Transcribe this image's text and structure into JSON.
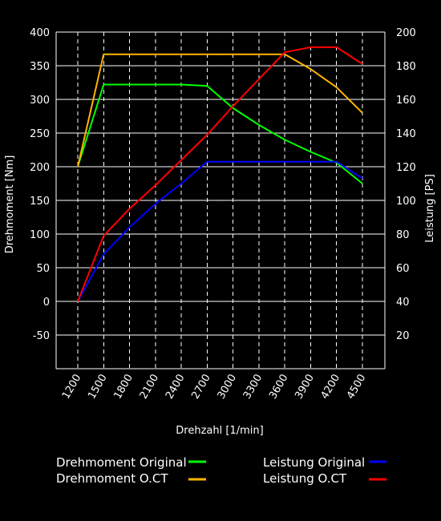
{
  "chart_data": {
    "type": "line",
    "xlabel": "Drehzahl [1/min]",
    "ylabel_left": "Drehmoment [Nm]",
    "ylabel_right": "Leistung [PS]",
    "x": [
      1200,
      1500,
      1800,
      2100,
      2400,
      2700,
      3000,
      3300,
      3600,
      3900,
      4200,
      4500
    ],
    "x_ticks": [
      "1200",
      "1500",
      "1800",
      "2100",
      "2400",
      "2700",
      "3000",
      "3300",
      "3600",
      "3900",
      "4200",
      "4500"
    ],
    "x_grid": "dashed",
    "y_left_range": [
      -100,
      400
    ],
    "y_left_ticks": [
      -50,
      0,
      50,
      100,
      150,
      200,
      250,
      300,
      350,
      400
    ],
    "y_right_range": [
      0,
      200
    ],
    "y_right_ticks": [
      20,
      40,
      60,
      80,
      100,
      120,
      140,
      160,
      180,
      200
    ],
    "grid": true,
    "legend_position": "bottom",
    "series": [
      {
        "name": "Drehmoment Original",
        "axis": "left",
        "color": "#00ff00",
        "points": [
          [
            1200,
            200
          ],
          [
            1500,
            322
          ],
          [
            2400,
            322
          ],
          [
            2700,
            320
          ],
          [
            3000,
            287
          ],
          [
            3300,
            262
          ],
          [
            3600,
            240
          ],
          [
            3900,
            222
          ],
          [
            4200,
            206
          ],
          [
            4500,
            175
          ]
        ]
      },
      {
        "name": "Drehmoment O.CT",
        "axis": "left",
        "color": "#ffb400",
        "points": [
          [
            1200,
            200
          ],
          [
            1500,
            367
          ],
          [
            3600,
            367
          ],
          [
            3900,
            345
          ],
          [
            4200,
            318
          ],
          [
            4500,
            280
          ]
        ]
      },
      {
        "name": "Leistung Original",
        "axis": "right",
        "color": "#0000ff",
        "points": [
          [
            1200,
            40
          ],
          [
            1500,
            68
          ],
          [
            1800,
            84
          ],
          [
            2100,
            98
          ],
          [
            2400,
            110
          ],
          [
            2700,
            123
          ],
          [
            4200,
            123
          ],
          [
            4500,
            113
          ]
        ]
      },
      {
        "name": "Leistung O.CT",
        "axis": "right",
        "color": "#ff0000",
        "points": [
          [
            1200,
            40
          ],
          [
            1500,
            79
          ],
          [
            1800,
            95
          ],
          [
            2100,
            109
          ],
          [
            2400,
            124
          ],
          [
            2700,
            139
          ],
          [
            3000,
            156
          ],
          [
            3300,
            172
          ],
          [
            3600,
            188
          ],
          [
            3900,
            191
          ],
          [
            4200,
            191
          ],
          [
            4500,
            181
          ]
        ]
      }
    ]
  }
}
